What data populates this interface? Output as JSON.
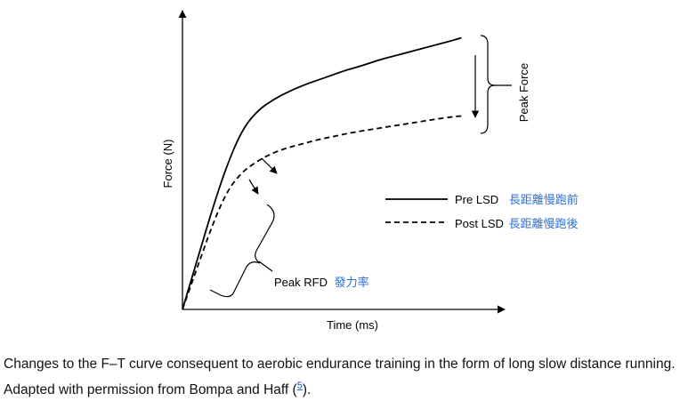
{
  "chart_data": {
    "type": "line",
    "xlabel": "Time (ms)",
    "ylabel": "Force (N)",
    "xlim": [
      0,
      100
    ],
    "ylim": [
      0,
      100
    ],
    "grid": false,
    "legend_position": "right",
    "series": [
      {
        "name": "Pre LSD",
        "annotation_zh": "長距離慢跑前",
        "line_style": "solid",
        "x": [
          0,
          5,
          10,
          15,
          20,
          25,
          30,
          35,
          40,
          45,
          50,
          55,
          60,
          65,
          70,
          75,
          80,
          85,
          90,
          93
        ],
        "y": [
          0,
          19,
          38,
          55,
          68,
          75,
          79,
          82,
          84.5,
          86.5,
          88.5,
          90.5,
          92,
          94,
          95.5,
          97,
          98.5,
          100,
          101.5,
          102.5
        ]
      },
      {
        "name": "Post LSD",
        "annotation_zh": "長距離慢跑後",
        "line_style": "dashed",
        "x": [
          0,
          5,
          10,
          15,
          20,
          25,
          30,
          35,
          40,
          45,
          50,
          55,
          60,
          65,
          70,
          75,
          80,
          85,
          90,
          93
        ],
        "y": [
          0,
          16,
          32,
          45,
          52,
          56,
          59,
          61,
          62.5,
          64,
          65.2,
          66.4,
          67.4,
          68.3,
          69.2,
          70.1,
          71,
          71.9,
          72.7,
          73
        ]
      }
    ],
    "annotations": {
      "peak_force": "Peak Force",
      "peak_rfd": "Peak RFD",
      "peak_rfd_zh": "發力率"
    }
  },
  "caption": {
    "text_before": "Changes to the F–T curve consequent to aerobic endurance training in the form of long slow distance running. Adapted with permission from Bompa and Haff (",
    "ref": "5",
    "text_after": ")."
  }
}
